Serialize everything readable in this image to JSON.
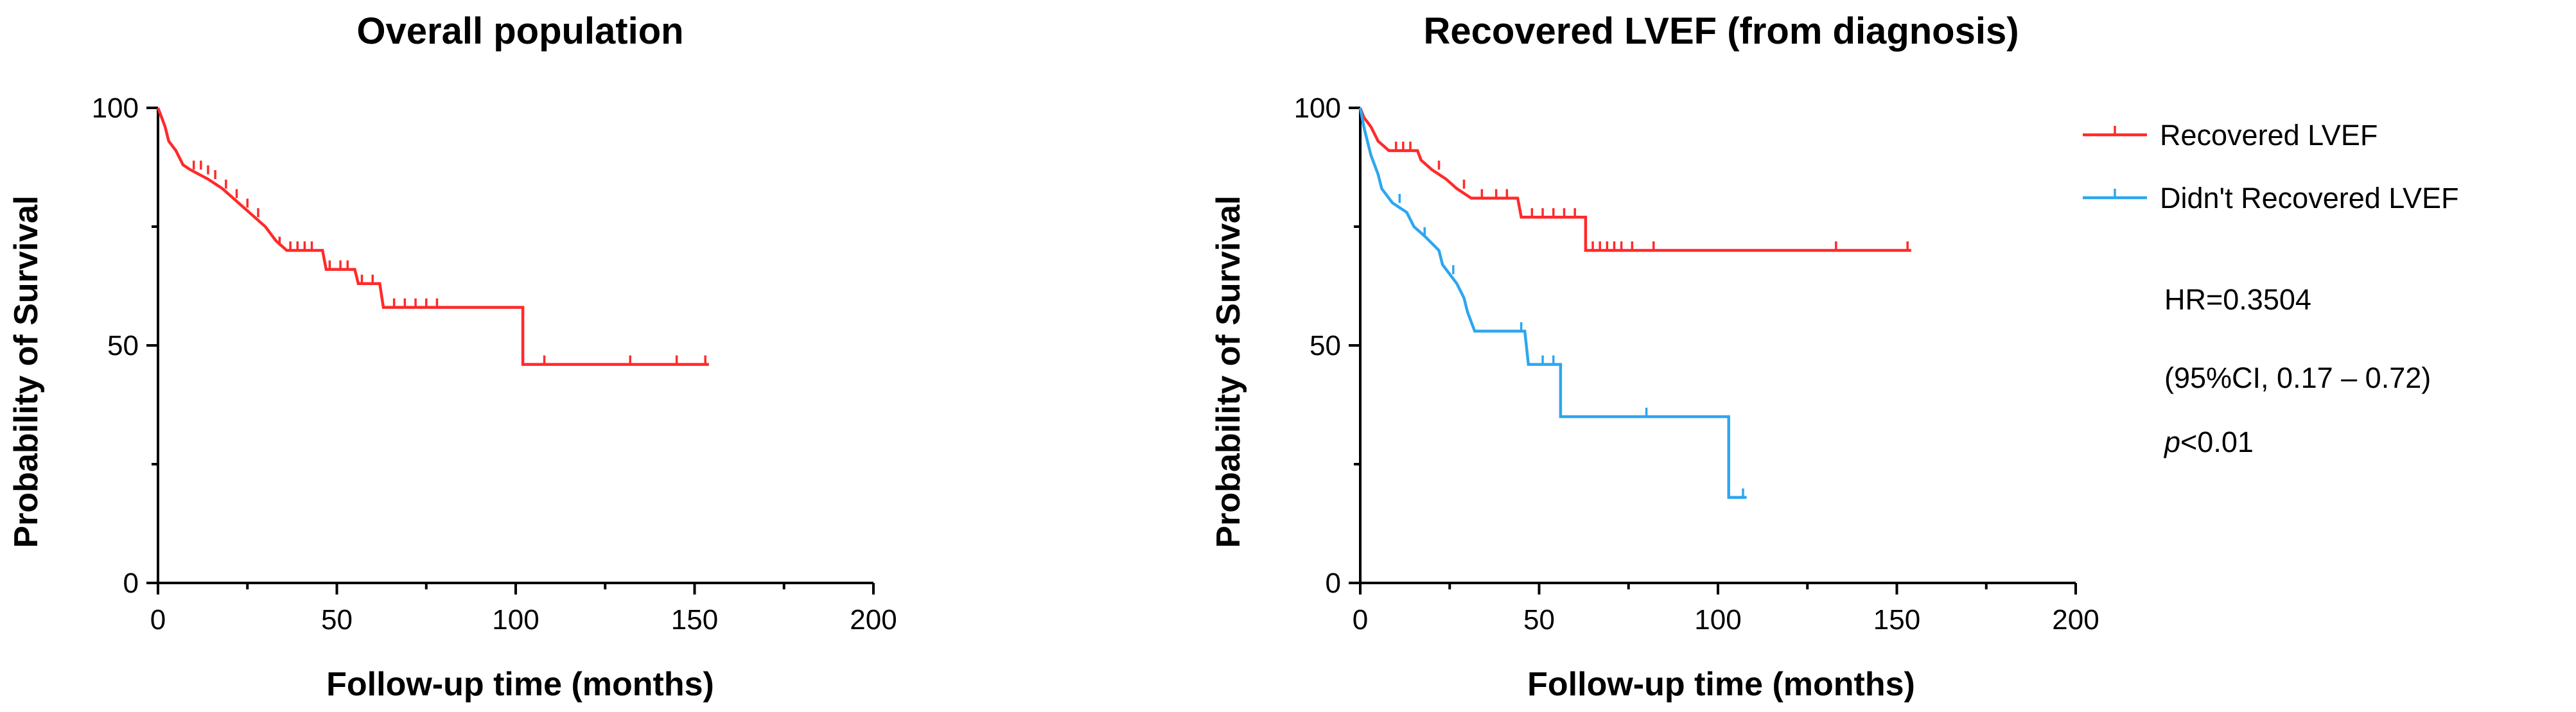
{
  "colors": {
    "red": "#ff2a2a",
    "blue": "#2ea6f0",
    "axis": "#000000"
  },
  "chart_data": [
    {
      "type": "line",
      "subtype": "kaplan-meier",
      "title": "Overall population",
      "xlabel": "Follow-up time (months)",
      "ylabel": "Probability of Survival",
      "xlim": [
        0,
        200
      ],
      "ylim": [
        0,
        100
      ],
      "xticks": [
        "0",
        "50",
        "100",
        "150",
        "200"
      ],
      "yticks": [
        "0",
        "50",
        "100"
      ],
      "series": [
        {
          "name": "Overall population",
          "color": "#ff2a2a",
          "steps": [
            [
              0,
              100
            ],
            [
              1,
              98
            ],
            [
              2,
              96
            ],
            [
              3,
              93
            ],
            [
              5,
              91
            ],
            [
              7,
              88
            ],
            [
              9,
              87
            ],
            [
              14,
              85
            ],
            [
              18,
              83
            ],
            [
              21,
              81
            ],
            [
              24,
              79
            ],
            [
              27,
              77
            ],
            [
              30,
              75
            ],
            [
              33,
              72
            ],
            [
              36,
              70
            ],
            [
              46,
              70
            ],
            [
              47,
              66
            ],
            [
              55,
              66
            ],
            [
              56,
              63
            ],
            [
              62,
              63
            ],
            [
              63,
              58
            ],
            [
              102,
              58
            ],
            [
              102,
              46
            ],
            [
              154,
              46
            ]
          ],
          "censors": [
            [
              10,
              87
            ],
            [
              12,
              87
            ],
            [
              14,
              86
            ],
            [
              16,
              85
            ],
            [
              19,
              83
            ],
            [
              22,
              81
            ],
            [
              25,
              79
            ],
            [
              28,
              77
            ],
            [
              34,
              71
            ],
            [
              37,
              70
            ],
            [
              39,
              70
            ],
            [
              41,
              70
            ],
            [
              43,
              70
            ],
            [
              48,
              66
            ],
            [
              51,
              66
            ],
            [
              53,
              66
            ],
            [
              57,
              63
            ],
            [
              60,
              63
            ],
            [
              66,
              58
            ],
            [
              69,
              58
            ],
            [
              72,
              58
            ],
            [
              75,
              58
            ],
            [
              78,
              58
            ],
            [
              108,
              46
            ],
            [
              132,
              46
            ],
            [
              145,
              46
            ],
            [
              153,
              46
            ]
          ]
        }
      ]
    },
    {
      "type": "line",
      "subtype": "kaplan-meier",
      "title": "Recovered LVEF  (from diagnosis)",
      "xlabel": "Follow-up time (months)",
      "ylabel": "Probability of Survival",
      "xlim": [
        0,
        200
      ],
      "ylim": [
        0,
        100
      ],
      "xticks": [
        "0",
        "50",
        "100",
        "150",
        "200"
      ],
      "yticks": [
        "0",
        "50",
        "100"
      ],
      "legend_position": "right",
      "series": [
        {
          "name": "Recovered LVEF",
          "color": "#ff2a2a",
          "steps": [
            [
              0,
              100
            ],
            [
              1,
              98
            ],
            [
              3,
              96
            ],
            [
              5,
              93
            ],
            [
              8,
              91
            ],
            [
              16,
              91
            ],
            [
              17,
              89
            ],
            [
              20,
              87
            ],
            [
              24,
              85
            ],
            [
              27,
              83
            ],
            [
              31,
              81
            ],
            [
              44,
              81
            ],
            [
              45,
              77
            ],
            [
              63,
              77
            ],
            [
              63,
              70
            ],
            [
              154,
              70
            ]
          ],
          "censors": [
            [
              10,
              91
            ],
            [
              12,
              91
            ],
            [
              14,
              91
            ],
            [
              22,
              87
            ],
            [
              29,
              83
            ],
            [
              34,
              81
            ],
            [
              38,
              81
            ],
            [
              41,
              81
            ],
            [
              48,
              77
            ],
            [
              51,
              77
            ],
            [
              54,
              77
            ],
            [
              57,
              77
            ],
            [
              60,
              77
            ],
            [
              65,
              70
            ],
            [
              67,
              70
            ],
            [
              69,
              70
            ],
            [
              71,
              70
            ],
            [
              73,
              70
            ],
            [
              76,
              70
            ],
            [
              82,
              70
            ],
            [
              133,
              70
            ],
            [
              153,
              70
            ]
          ]
        },
        {
          "name": "Didn't Recovered LVEF",
          "color": "#2ea6f0",
          "steps": [
            [
              0,
              100
            ],
            [
              1,
              96
            ],
            [
              2,
              93
            ],
            [
              3,
              90
            ],
            [
              5,
              86
            ],
            [
              6,
              83
            ],
            [
              9,
              80
            ],
            [
              13,
              78
            ],
            [
              15,
              75
            ],
            [
              18,
              73
            ],
            [
              22,
              70
            ],
            [
              23,
              67
            ],
            [
              25,
              65
            ],
            [
              27,
              63
            ],
            [
              29,
              60
            ],
            [
              30,
              57
            ],
            [
              32,
              53
            ],
            [
              46,
              53
            ],
            [
              47,
              46
            ],
            [
              56,
              46
            ],
            [
              56,
              35
            ],
            [
              103,
              35
            ],
            [
              103,
              18
            ],
            [
              108,
              18
            ]
          ],
          "censors": [
            [
              11,
              80
            ],
            [
              18,
              73
            ],
            [
              26,
              65
            ],
            [
              45,
              53
            ],
            [
              51,
              46
            ],
            [
              54,
              46
            ],
            [
              80,
              35
            ],
            [
              107,
              18
            ]
          ]
        }
      ],
      "annotations": {
        "hr": "HR=0.3504",
        "ci": "(95%CI, 0.17 – 0.72)",
        "p_symbol": "p",
        "p_value": "<0.01"
      }
    }
  ]
}
